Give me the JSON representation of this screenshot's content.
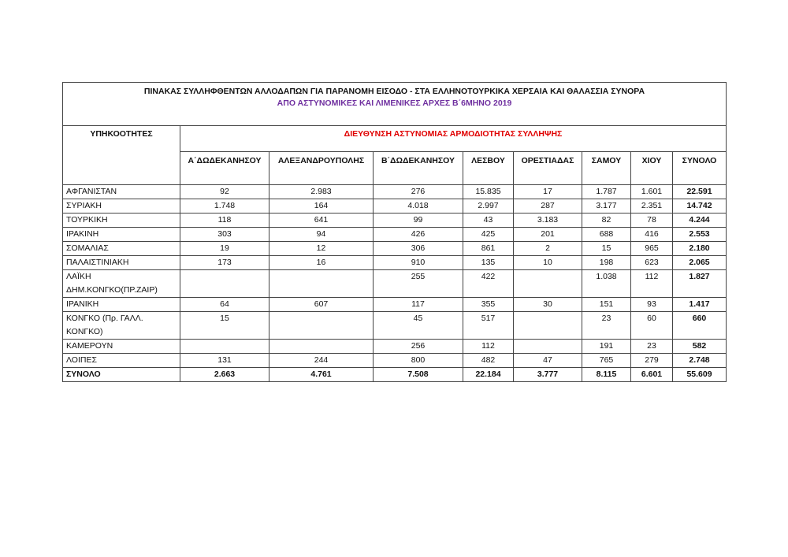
{
  "title": "ΠΙΝΑΚΑΣ ΣΥΛΛΗΦΘΕΝΤΩΝ ΑΛΛΟΔΑΠΩΝ ΓΙΑ ΠΑΡΑΝΟΜΗ ΕΙΣΟΔΟ - ΣΤΑ ΕΛΛΗΝΟΤΟΥΡΚΙΚΑ ΧΕΡΣΑΙΑ ΚΑΙ ΘΑΛΑΣΣΙΑ ΣΥΝΟΡΑ",
  "subtitle": "ΑΠΟ ΑΣΤΥΝΟΜΙΚΕΣ ΚΑΙ ΛΙΜΕΝΙΚΕΣ ΑΡΧΕΣ Β΄6ΜΗΝΟ 2019",
  "colors": {
    "subtitle": "#7030a0",
    "directorate": "#e00000"
  },
  "header": {
    "nationalities": "ΥΠΗΚΟΟΤΗΤΕΣ",
    "directorate": "ΔΙΕΥΘΥΝΣΗ ΑΣΤΥΝΟΜΙΑΣ ΑΡΜΟΔΙΟΤΗΤΑΣ ΣΥΛΛΗΨΗΣ",
    "columns": [
      "Α΄ΔΩΔΕΚΑΝΗΣΟΥ",
      "ΑΛΕΞΑΝΔΡΟΥΠΟΛΗΣ",
      "Β΄ΔΩΔΕΚΑΝΗΣΟΥ",
      "ΛΕΣΒΟΥ",
      "ΟΡΕΣΤΙΑΔΑΣ",
      "ΣΑΜΟΥ",
      "ΧΙΟΥ",
      "ΣΥΝΟΛΟ"
    ]
  },
  "rows": [
    {
      "name": "ΑΦΓΑΝΙΣΤΑΝ",
      "values": [
        "92",
        "2.983",
        "276",
        "15.835",
        "17",
        "1.787",
        "1.601",
        "22.591"
      ]
    },
    {
      "name": "ΣΥΡΙΑΚΗ",
      "values": [
        "1.748",
        "164",
        "4.018",
        "2.997",
        "287",
        "3.177",
        "2.351",
        "14.742"
      ]
    },
    {
      "name": "ΤΟΥΡΚΙΚΗ",
      "values": [
        "118",
        "641",
        "99",
        "43",
        "3.183",
        "82",
        "78",
        "4.244"
      ]
    },
    {
      "name": "ΙΡΑΚΙΝΗ",
      "values": [
        "303",
        "94",
        "426",
        "425",
        "201",
        "688",
        "416",
        "2.553"
      ]
    },
    {
      "name": "ΣΟΜΑΛΙΑΣ",
      "values": [
        "19",
        "12",
        "306",
        "861",
        "2",
        "15",
        "965",
        "2.180"
      ]
    },
    {
      "name": "ΠΑΛΑΙΣΤΙΝΙΑΚΗ",
      "values": [
        "173",
        "16",
        "910",
        "135",
        "10",
        "198",
        "623",
        "2.065"
      ]
    },
    {
      "name": "ΛΑΪΚΗ ΔΗΜ.ΚΟΝΓΚΟ(ΠΡ.ΖΑΙΡ)",
      "values": [
        "",
        "",
        "255",
        "422",
        "",
        "1.038",
        "112",
        "1.827"
      ]
    },
    {
      "name": "ΙΡΑΝΙΚΗ",
      "values": [
        "64",
        "607",
        "117",
        "355",
        "30",
        "151",
        "93",
        "1.417"
      ]
    },
    {
      "name": "ΚΟΝΓΚΟ (Πρ. ΓΑΛΛ. ΚΟΝΓΚΟ)",
      "values": [
        "15",
        "",
        "45",
        "517",
        "",
        "23",
        "60",
        "660"
      ]
    },
    {
      "name": "ΚΑΜΕΡΟΥΝ",
      "values": [
        "",
        "",
        "256",
        "112",
        "",
        "191",
        "23",
        "582"
      ]
    },
    {
      "name": "ΛΟΙΠΕΣ",
      "values": [
        "131",
        "244",
        "800",
        "482",
        "47",
        "765",
        "279",
        "2.748"
      ]
    }
  ],
  "total": {
    "name": "ΣΥΝΟΛΟ",
    "values": [
      "2.663",
      "4.761",
      "7.508",
      "22.184",
      "3.777",
      "8.115",
      "6.601",
      "55.609"
    ]
  }
}
